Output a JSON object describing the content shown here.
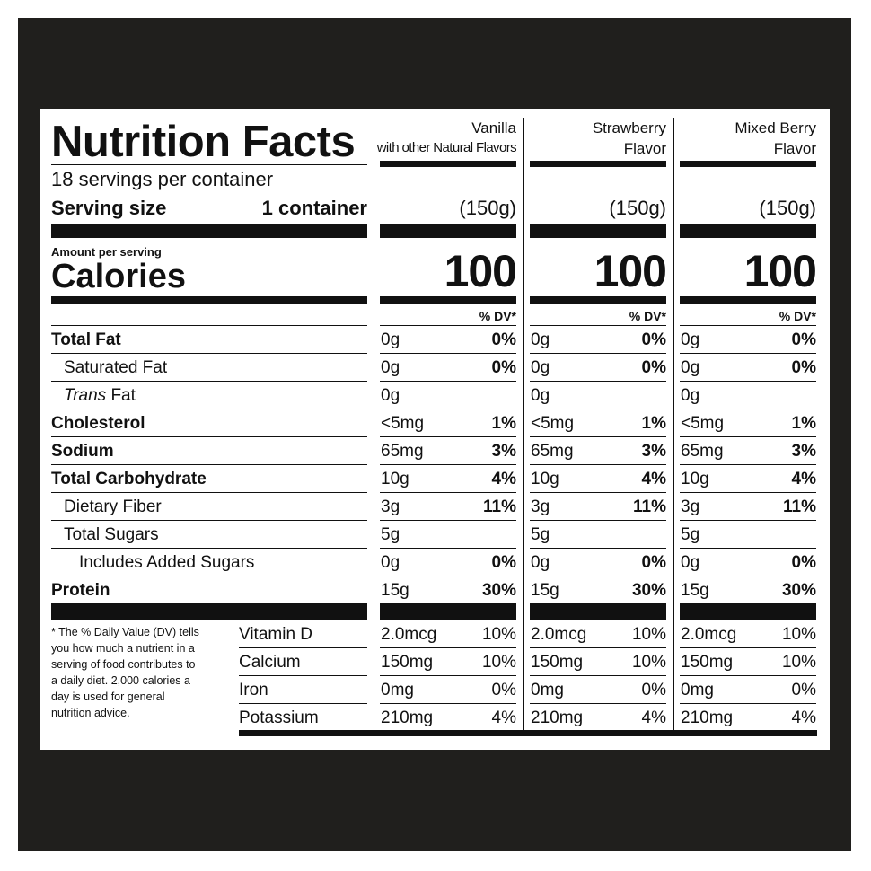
{
  "left": {
    "title": "Nutrition Facts",
    "servings": "18 servings per container",
    "serving_size_label": "Serving size",
    "serving_size_value": "1 container",
    "amount_per_serving": "Amount per serving",
    "calories_label": "Calories",
    "footnote": "* The % Daily Value (DV) tells you how much a nutrient in a serving of food contributes to a daily diet. 2,000 calories a day is used for general nutrition advice."
  },
  "nutrients": [
    "Total Fat",
    "Saturated Fat",
    "Fat",
    "Cholesterol",
    "Sodium",
    "Total Carbohydrate",
    "Dietary Fiber",
    "Total Sugars",
    "Includes Added Sugars",
    "Protein"
  ],
  "trans_prefix": "Trans",
  "vitamins": [
    "Vitamin D",
    "Calcium",
    "Iron",
    "Potassium"
  ],
  "columns": [
    {
      "head1": "Vanilla",
      "head2": "with other Natural Flavors",
      "serving": "(150g)",
      "calories": "100",
      "dv_header": "% DV*",
      "amounts": [
        "0g",
        "0g",
        "0g",
        "<5mg",
        "65mg",
        "10g",
        "3g",
        "5g",
        "0g",
        "15g"
      ],
      "dvs": [
        "0%",
        "0%",
        "",
        "1%",
        "3%",
        "4%",
        "11%",
        "",
        "0%",
        "30%"
      ],
      "vit_amounts": [
        "2.0mcg",
        "150mg",
        "0mg",
        "210mg"
      ],
      "vit_dvs": [
        "10%",
        "10%",
        "0%",
        "4%"
      ]
    },
    {
      "head1": "Strawberry",
      "head2": "Flavor",
      "serving": "(150g)",
      "calories": "100",
      "dv_header": "% DV*",
      "amounts": [
        "0g",
        "0g",
        "0g",
        "<5mg",
        "65mg",
        "10g",
        "3g",
        "5g",
        "0g",
        "15g"
      ],
      "dvs": [
        "0%",
        "0%",
        "",
        "1%",
        "3%",
        "4%",
        "11%",
        "",
        "0%",
        "30%"
      ],
      "vit_amounts": [
        "2.0mcg",
        "150mg",
        "0mg",
        "210mg"
      ],
      "vit_dvs": [
        "10%",
        "10%",
        "0%",
        "4%"
      ]
    },
    {
      "head1": "Mixed Berry",
      "head2": "Flavor",
      "serving": "(150g)",
      "calories": "100",
      "dv_header": "% DV*",
      "amounts": [
        "0g",
        "0g",
        "0g",
        "<5mg",
        "65mg",
        "10g",
        "3g",
        "5g",
        "0g",
        "15g"
      ],
      "dvs": [
        "0%",
        "0%",
        "",
        "1%",
        "3%",
        "4%",
        "11%",
        "",
        "0%",
        "30%"
      ],
      "vit_amounts": [
        "2.0mcg",
        "150mg",
        "0mg",
        "210mg"
      ],
      "vit_dvs": [
        "10%",
        "10%",
        "0%",
        "4%"
      ]
    }
  ],
  "colors": {
    "background": "#201f1d",
    "panel": "#ffffff",
    "ink": "#111111"
  }
}
